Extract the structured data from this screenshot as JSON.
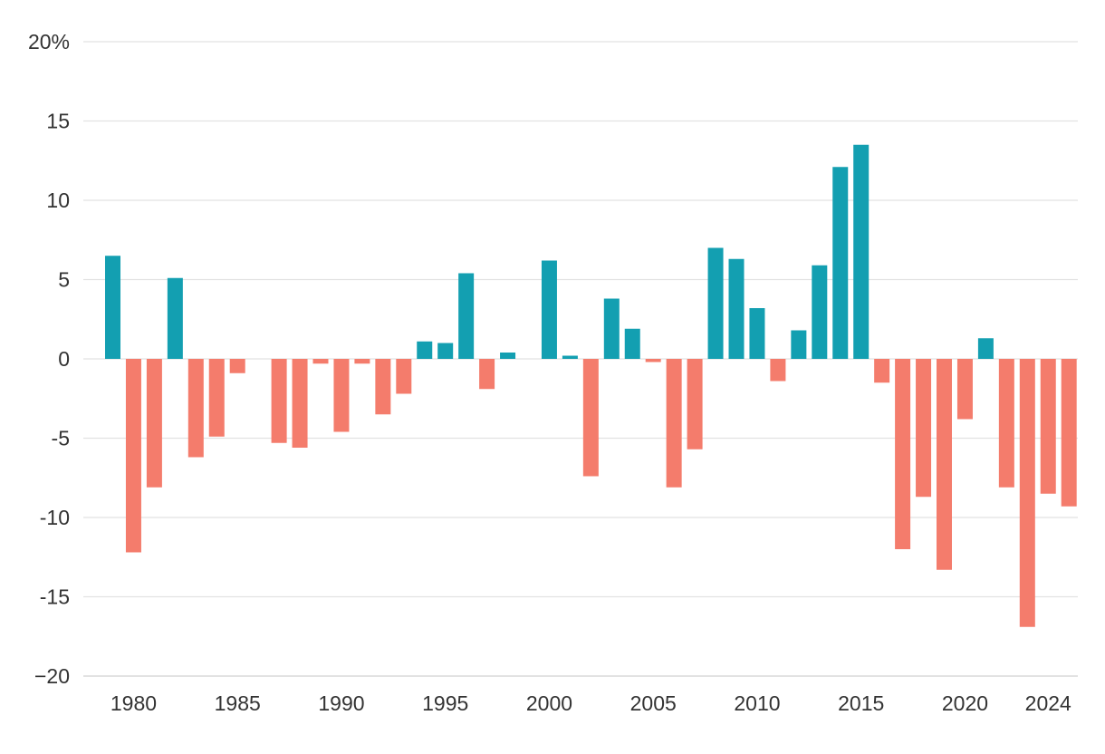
{
  "chart_data": {
    "type": "bar",
    "title": "",
    "xlabel": "",
    "ylabel": "",
    "ylim": [
      -20,
      20
    ],
    "y_ticks": [
      20,
      15,
      10,
      5,
      0,
      -5,
      -10,
      -15,
      -20
    ],
    "y_tick_labels": [
      "20%",
      "15",
      "10",
      "5",
      "0",
      "-5",
      "-10",
      "-15",
      "−20"
    ],
    "x_ticks": [
      1980,
      1985,
      1990,
      1995,
      2000,
      2005,
      2010,
      2015,
      2020,
      2024
    ],
    "x_tick_labels": [
      "1980",
      "1985",
      "1990",
      "1995",
      "2000",
      "2005",
      "2010",
      "2015",
      "2020",
      "2024"
    ],
    "colors": {
      "positive": "#139fb1",
      "negative": "#f47c6c"
    },
    "categories": [
      1979,
      1980,
      1981,
      1982,
      1983,
      1984,
      1985,
      1986,
      1987,
      1988,
      1989,
      1990,
      1991,
      1992,
      1993,
      1994,
      1995,
      1996,
      1997,
      1998,
      1999,
      2000,
      2001,
      2002,
      2003,
      2004,
      2005,
      2006,
      2007,
      2008,
      2009,
      2010,
      2011,
      2012,
      2013,
      2014,
      2015,
      2016,
      2017,
      2018,
      2019,
      2020,
      2021,
      2022,
      2023,
      2024,
      2025
    ],
    "values": [
      6.5,
      -12.2,
      -8.1,
      5.1,
      -6.2,
      -4.9,
      -0.9,
      0,
      -5.3,
      -5.6,
      -0.3,
      -4.6,
      -0.3,
      -3.5,
      -2.2,
      1.1,
      1.0,
      5.4,
      -1.9,
      0.4,
      0,
      6.2,
      0.2,
      -7.4,
      3.8,
      1.9,
      -0.2,
      -8.1,
      -5.7,
      7.0,
      6.3,
      3.2,
      -1.4,
      1.8,
      5.9,
      12.1,
      13.5,
      -1.5,
      -12.0,
      -8.7,
      -13.3,
      -3.8,
      1.3,
      -8.1,
      -16.9,
      -8.5,
      -9.3
    ]
  }
}
